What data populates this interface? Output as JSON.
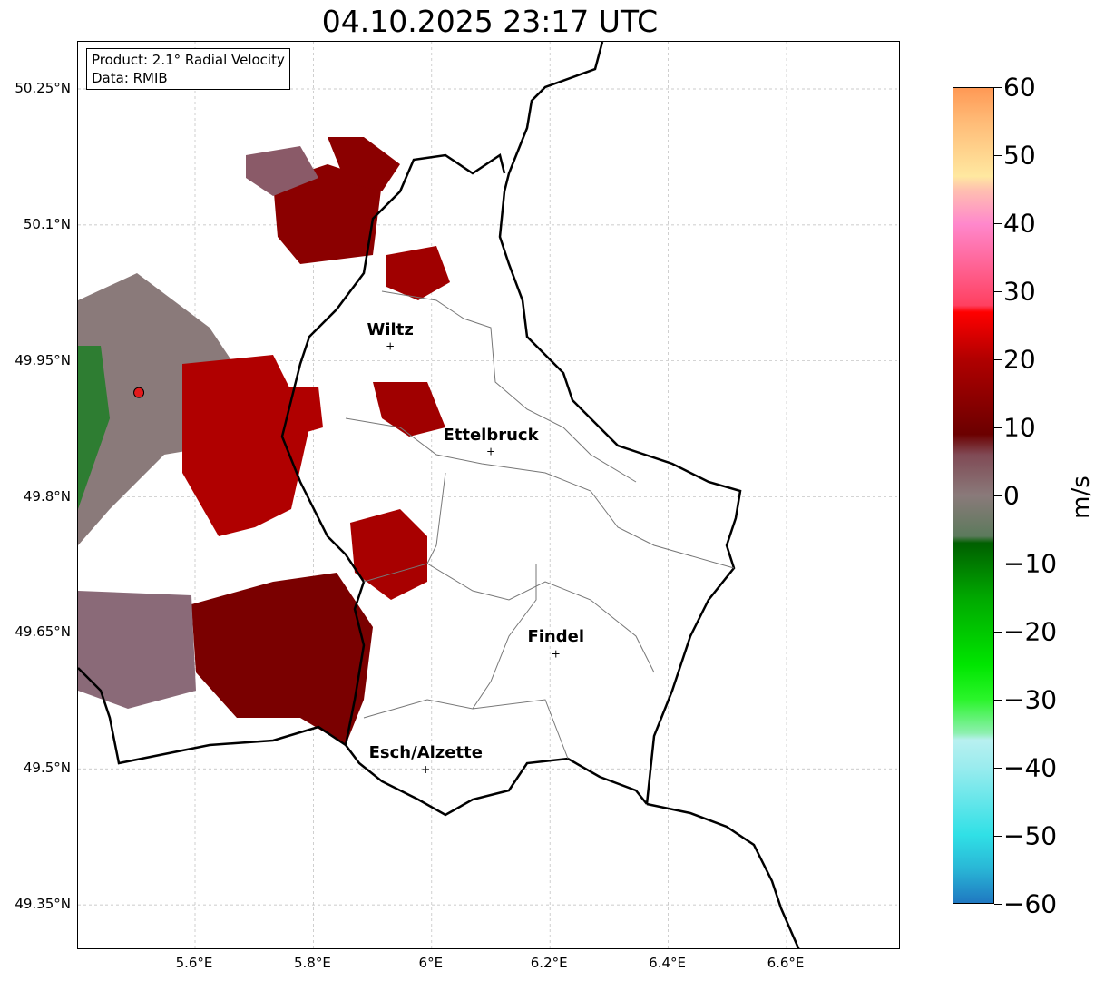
{
  "title": "04.10.2025 23:17 UTC",
  "info": {
    "product": "Product: 2.1° Radial Velocity",
    "data": "Data: RMIB"
  },
  "lat_ticks": [
    {
      "v": 50.25,
      "label": "50.25°N"
    },
    {
      "v": 50.1,
      "label": "50.1°N"
    },
    {
      "v": 49.95,
      "label": "49.95°N"
    },
    {
      "v": 49.8,
      "label": "49.8°N"
    },
    {
      "v": 49.65,
      "label": "49.65°N"
    },
    {
      "v": 49.5,
      "label": "49.5°N"
    },
    {
      "v": 49.35,
      "label": "49.35°N"
    }
  ],
  "lon_ticks": [
    {
      "v": 5.6,
      "label": "5.6°E"
    },
    {
      "v": 5.8,
      "label": "5.8°E"
    },
    {
      "v": 6.0,
      "label": "6°E"
    },
    {
      "v": 6.2,
      "label": "6.2°E"
    },
    {
      "v": 6.4,
      "label": "6.4°E"
    },
    {
      "v": 6.6,
      "label": "6.6°E"
    }
  ],
  "cities": [
    {
      "name": "Wiltz",
      "lon": 5.93,
      "lat": 49.966
    },
    {
      "name": "Ettelbruck",
      "lon": 6.1,
      "lat": 49.85
    },
    {
      "name": "Findel",
      "lon": 6.21,
      "lat": 49.627
    },
    {
      "name": "Esch/Alzette",
      "lon": 5.99,
      "lat": 49.499
    }
  ],
  "radar_site": {
    "lon": 5.505,
    "lat": 49.915,
    "color": "#e31a1c"
  },
  "colorbar": {
    "unit": "m/s",
    "min": -60,
    "max": 60,
    "ticks": [
      {
        "v": 60,
        "label": "60"
      },
      {
        "v": 50,
        "label": "50"
      },
      {
        "v": 40,
        "label": "40"
      },
      {
        "v": 30,
        "label": "30"
      },
      {
        "v": 20,
        "label": "20"
      },
      {
        "v": 10,
        "label": "10"
      },
      {
        "v": 0,
        "label": "0"
      },
      {
        "v": -10,
        "label": "−10"
      },
      {
        "v": -20,
        "label": "−20"
      },
      {
        "v": -30,
        "label": "−30"
      },
      {
        "v": -40,
        "label": "−40"
      },
      {
        "v": -50,
        "label": "−50"
      },
      {
        "v": -60,
        "label": "−60"
      }
    ],
    "stops": [
      [
        -60,
        "#1f78c1"
      ],
      [
        -55,
        "#29b6d6"
      ],
      [
        -50,
        "#30e0e6"
      ],
      [
        -40,
        "#9aecee"
      ],
      [
        -36,
        "#b8f0f0"
      ],
      [
        -35,
        "#8ef0b0"
      ],
      [
        -30,
        "#2af52a"
      ],
      [
        -25,
        "#00e600"
      ],
      [
        -15,
        "#00a800"
      ],
      [
        -7,
        "#005f00"
      ],
      [
        -6,
        "#5c7a5c"
      ],
      [
        0,
        "#8a7a7a"
      ],
      [
        6,
        "#804a55"
      ],
      [
        9,
        "#6b0000"
      ],
      [
        20,
        "#b00000"
      ],
      [
        27,
        "#ff0000"
      ],
      [
        28,
        "#ff4060"
      ],
      [
        40,
        "#ff88cc"
      ],
      [
        45,
        "#ffc0b0"
      ],
      [
        47,
        "#ffe8a0"
      ],
      [
        55,
        "#ffbb77"
      ],
      [
        60,
        "#ff9955"
      ]
    ]
  }
}
